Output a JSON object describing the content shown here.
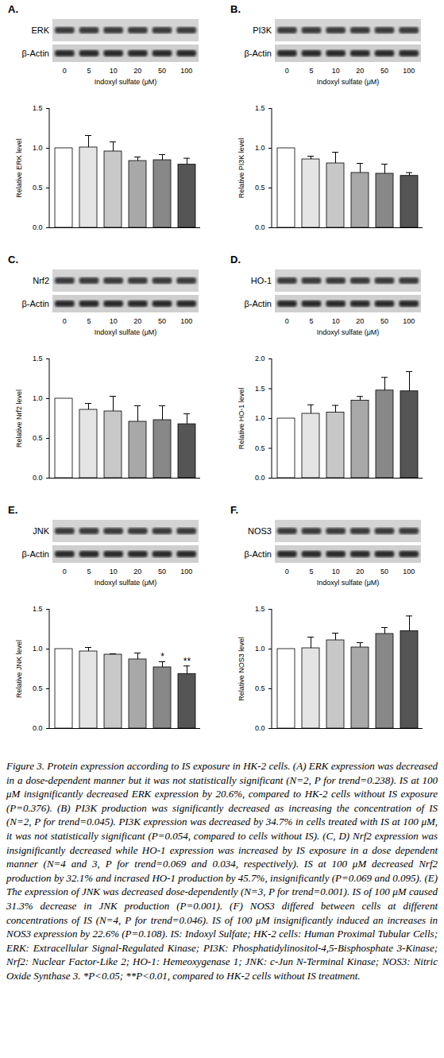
{
  "chart_data": [
    {
      "type": "bar",
      "title": "A.",
      "blot_labels": [
        "ERK",
        "β-Actin"
      ],
      "xlabel": "Indoxyl sulfate (μM)",
      "ylabel": "Relative ERK level",
      "categories": [
        "0",
        "5",
        "10",
        "20",
        "50",
        "100"
      ],
      "values": [
        1.0,
        1.01,
        0.96,
        0.84,
        0.85,
        0.794
      ],
      "errors": [
        0,
        0.15,
        0.12,
        0.05,
        0.07,
        0.08
      ],
      "colors": [
        "#ffffff",
        "#e4e4e4",
        "#c8c8c8",
        "#a8a8a8",
        "#888888",
        "#555555"
      ],
      "ylim": [
        0,
        1.5
      ],
      "yticks": [
        {
          "value": 0,
          "label": "0.0"
        },
        {
          "value": 0.5,
          "label": "0.5"
        },
        {
          "value": 1.0,
          "label": "1.0"
        },
        {
          "value": 1.5,
          "label": "1.5"
        }
      ]
    },
    {
      "type": "bar",
      "title": "B.",
      "blot_labels": [
        "PI3K",
        "β-Actin"
      ],
      "xlabel": "Indoxyl sulfate (μM)",
      "ylabel": "Relative PI3K level",
      "categories": [
        "0",
        "5",
        "10",
        "20",
        "50",
        "100"
      ],
      "values": [
        1.0,
        0.86,
        0.81,
        0.69,
        0.68,
        0.653
      ],
      "errors": [
        0,
        0.04,
        0.14,
        0.12,
        0.12,
        0.04
      ],
      "colors": [
        "#ffffff",
        "#e4e4e4",
        "#c8c8c8",
        "#a8a8a8",
        "#888888",
        "#555555"
      ],
      "ylim": [
        0,
        1.5
      ],
      "yticks": [
        {
          "value": 0,
          "label": "0.0"
        },
        {
          "value": 0.5,
          "label": "0.5"
        },
        {
          "value": 1.0,
          "label": "1.0"
        },
        {
          "value": 1.5,
          "label": "1.5"
        }
      ]
    },
    {
      "type": "bar",
      "title": "C.",
      "blot_labels": [
        "Nrf2",
        "β-Actin"
      ],
      "xlabel": "Indoxyl sulfate (μM)",
      "ylabel": "Relative Nrf2 level",
      "categories": [
        "0",
        "5",
        "10",
        "20",
        "50",
        "100"
      ],
      "values": [
        1.0,
        0.86,
        0.84,
        0.71,
        0.73,
        0.679
      ],
      "errors": [
        0,
        0.08,
        0.19,
        0.2,
        0.18,
        0.13
      ],
      "colors": [
        "#ffffff",
        "#e4e4e4",
        "#c8c8c8",
        "#a8a8a8",
        "#888888",
        "#555555"
      ],
      "ylim": [
        0,
        1.5
      ],
      "yticks": [
        {
          "value": 0,
          "label": "0.0"
        },
        {
          "value": 0.5,
          "label": "0.5"
        },
        {
          "value": 1.0,
          "label": "1.0"
        },
        {
          "value": 1.5,
          "label": "1.5"
        }
      ]
    },
    {
      "type": "bar",
      "title": "D.",
      "blot_labels": [
        "HO-1",
        "β-Actin"
      ],
      "xlabel": "Indoxyl sulfate (μM)",
      "ylabel": "Relative HO-1 level",
      "categories": [
        "0",
        "5",
        "10",
        "20",
        "50",
        "100"
      ],
      "values": [
        1.0,
        1.08,
        1.1,
        1.3,
        1.47,
        1.457
      ],
      "errors": [
        0,
        0.15,
        0.12,
        0.07,
        0.22,
        0.33
      ],
      "colors": [
        "#ffffff",
        "#e4e4e4",
        "#c8c8c8",
        "#a8a8a8",
        "#888888",
        "#555555"
      ],
      "ylim": [
        0,
        2.0
      ],
      "yticks": [
        {
          "value": 0,
          "label": "0.0"
        },
        {
          "value": 0.5,
          "label": "0.5"
        },
        {
          "value": 1.0,
          "label": "1.0"
        },
        {
          "value": 1.5,
          "label": "1.5"
        },
        {
          "value": 2.0,
          "label": "2.0"
        }
      ]
    },
    {
      "type": "bar",
      "title": "E.",
      "blot_labels": [
        "JNK",
        "β-Actin"
      ],
      "xlabel": "Indoxyl sulfate (μM)",
      "ylabel": "Relative JNK level",
      "categories": [
        "0",
        "5",
        "10",
        "20",
        "50",
        "100"
      ],
      "values": [
        1.0,
        0.97,
        0.93,
        0.87,
        0.77,
        0.687
      ],
      "errors": [
        0,
        0.05,
        0.01,
        0.08,
        0.07,
        0.1
      ],
      "annotations": [
        null,
        null,
        null,
        null,
        "*",
        "**"
      ],
      "colors": [
        "#ffffff",
        "#e4e4e4",
        "#c8c8c8",
        "#a8a8a8",
        "#888888",
        "#555555"
      ],
      "ylim": [
        0,
        1.5
      ],
      "yticks": [
        {
          "value": 0,
          "label": "0.0"
        },
        {
          "value": 0.5,
          "label": "0.5"
        },
        {
          "value": 1.0,
          "label": "1.0"
        },
        {
          "value": 1.5,
          "label": "1.5"
        }
      ]
    },
    {
      "type": "bar",
      "title": "F.",
      "blot_labels": [
        "NOS3",
        "β-Actin"
      ],
      "xlabel": "Indoxyl sulfate (μM)",
      "ylabel": "Relative NOS3 level",
      "categories": [
        "0",
        "5",
        "10",
        "20",
        "50",
        "100"
      ],
      "values": [
        1.0,
        1.01,
        1.11,
        1.02,
        1.19,
        1.226
      ],
      "errors": [
        0,
        0.14,
        0.09,
        0.06,
        0.08,
        0.19
      ],
      "colors": [
        "#ffffff",
        "#e4e4e4",
        "#c8c8c8",
        "#a8a8a8",
        "#888888",
        "#555555"
      ],
      "ylim": [
        0,
        1.5
      ],
      "yticks": [
        {
          "value": 0,
          "label": "0.0"
        },
        {
          "value": 0.5,
          "label": "0.5"
        },
        {
          "value": 1.0,
          "label": "1.0"
        },
        {
          "value": 1.5,
          "label": "1.5"
        }
      ]
    }
  ],
  "caption": "Figure 3. Protein expression according to IS exposure in HK-2 cells. (A) ERK expression was decreased in a dose-dependent manner but it was not statistically significant (N=2, P for trend=0.238). IS at 100 μM insignificantly decreased ERK expression by 20.6%, compared to HK-2 cells without IS exposure (P=0.376). (B) PI3K production was significantly decreased as increasing the concentration of IS (N=2, P for trend=0.045). PI3K expression was decreased by 34.7% in cells treated with IS at 100 μM, it was not statistically significant (P=0.054, compared to cells without IS). (C, D) Nrf2 expression was insignificantly decreased while HO-1 expression was increased by IS exposure in a dose dependent manner (N=4 and 3, P for trend=0.069 and 0.034, respectively). IS at 100 μM decreased Nrf2 production by 32.1% and incrased HO-1 production by 45.7%, insignificantly (P=0.069 and 0.095). (E) The expression of JNK was decreased dose-dependently (N=3, P for trend=0.001). IS of 100 μM caused 31.3% decrease in JNK production (P=0.001). (F) NOS3 differed between cells at different concentrations of IS (N=4, P for trend=0.046). IS of 100 μM insignificantly induced an increases in NOS3 expression by 22.6% (P=0.108). IS: Indoxyl Sulfate; HK-2 cells: Human Proximal Tubular Cells; ERK: Extracellular Signal-Regulated Kinase; PI3K: Phosphatidylinositol-4,5-Bisphosphate 3-Kinase; Nrf2: Nuclear Factor-Like 2; HO-1: Hemeoxygenase 1; JNK: c-Jun N-Terminal Kinase; NOS3: Nitric Oxide Synthase 3. *P<0.05; **P<0.01, compared to HK-2 cells without IS treatment."
}
